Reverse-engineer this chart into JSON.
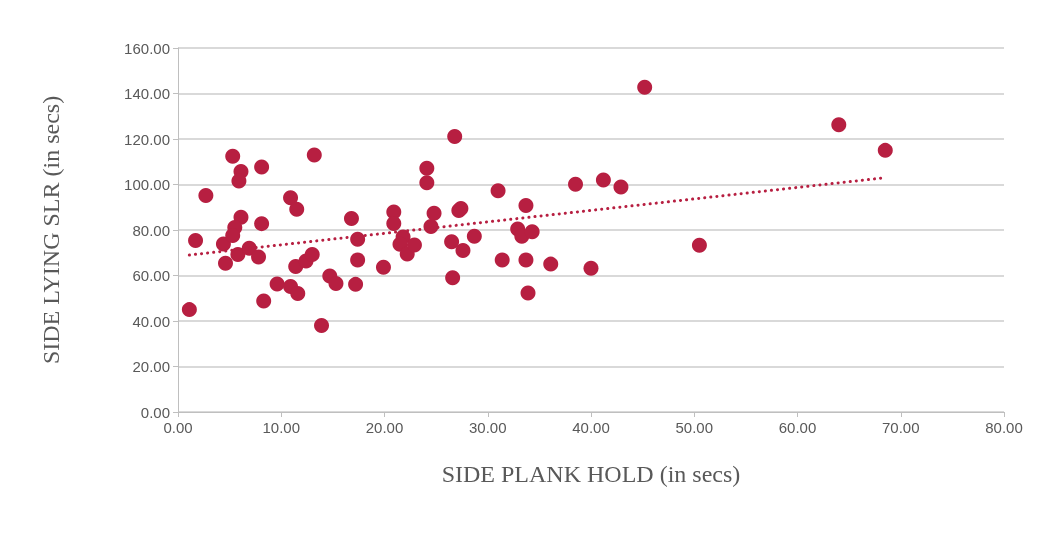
{
  "chart_data": {
    "type": "scatter",
    "xlabel": "SIDE PLANK HOLD (in secs)",
    "ylabel": "SIDE LYING SLR (in secs)",
    "xlim": [
      0,
      80
    ],
    "ylim": [
      0,
      160
    ],
    "xticks": [
      {
        "value": 0,
        "label": "0.00"
      },
      {
        "value": 10,
        "label": "10.00"
      },
      {
        "value": 20,
        "label": "20.00"
      },
      {
        "value": 30,
        "label": "30.00"
      },
      {
        "value": 40,
        "label": "40.00"
      },
      {
        "value": 50,
        "label": "50.00"
      },
      {
        "value": 60,
        "label": "60.00"
      },
      {
        "value": 70,
        "label": "70.00"
      },
      {
        "value": 80,
        "label": "80.00"
      }
    ],
    "yticks": [
      {
        "value": 0,
        "label": "0.00"
      },
      {
        "value": 20,
        "label": "20.00"
      },
      {
        "value": 40,
        "label": "40.00"
      },
      {
        "value": 60,
        "label": "60.00"
      },
      {
        "value": 80,
        "label": "80.00"
      },
      {
        "value": 100,
        "label": "100.00"
      },
      {
        "value": 120,
        "label": "120.00"
      },
      {
        "value": 140,
        "label": "140.00"
      },
      {
        "value": 160,
        "label": "160.00"
      }
    ],
    "grid": "y",
    "marker": "circle",
    "series": [
      {
        "color": "#b71f41",
        "x": [
          1.1,
          1.7,
          2.7,
          4.4,
          4.6,
          5.3,
          6.1,
          5.9,
          6.1,
          5.5,
          5.3,
          5.8,
          6.9,
          7.8,
          8.1,
          8.1,
          8.3,
          9.6,
          10.9,
          11.5,
          10.9,
          11.6,
          11.4,
          12.4,
          13.0,
          13.2,
          13.9,
          14.7,
          15.3,
          16.8,
          17.4,
          17.4,
          17.2,
          19.9,
          20.9,
          20.9,
          21.8,
          21.5,
          22.2,
          22.9,
          24.1,
          24.1,
          24.8,
          24.5,
          26.5,
          26.6,
          26.8,
          27.2,
          27.4,
          27.6,
          28.7,
          31.0,
          31.4,
          32.9,
          33.3,
          33.7,
          34.3,
          33.7,
          33.9,
          36.1,
          38.5,
          40.0,
          41.2,
          42.9,
          45.2,
          50.5,
          64.0,
          68.5
        ],
        "values": [
          45,
          75.4,
          95.2,
          73.8,
          65.4,
          112.4,
          105.7,
          101.5,
          85.6,
          81.1,
          77.6,
          69.2,
          72,
          68.1,
          82.8,
          107.7,
          48.8,
          56.3,
          94.2,
          89.1,
          55.2,
          52.1,
          64,
          66.4,
          69.2,
          113,
          38,
          59.8,
          56.5,
          85.1,
          75.9,
          66.8,
          56.1,
          63.6,
          87.9,
          82.9,
          76.9,
          73.7,
          69.5,
          73.4,
          107.1,
          100.8,
          87.4,
          81.5,
          74.8,
          59,
          121.1,
          88.6,
          89.5,
          71,
          77.2,
          97.3,
          66.8,
          80.4,
          77.3,
          90.8,
          79.2,
          66.8,
          52.3,
          65,
          100.1,
          63.2,
          102,
          98.9,
          142.7,
          73.3,
          126.3,
          115
        ]
      },
      {
        "type": "line",
        "color": "#b71f41",
        "line_style": "dotted",
        "marker": "none",
        "x": [
          1.1,
          68.5
        ],
        "values": [
          69,
          103
        ]
      }
    ]
  }
}
